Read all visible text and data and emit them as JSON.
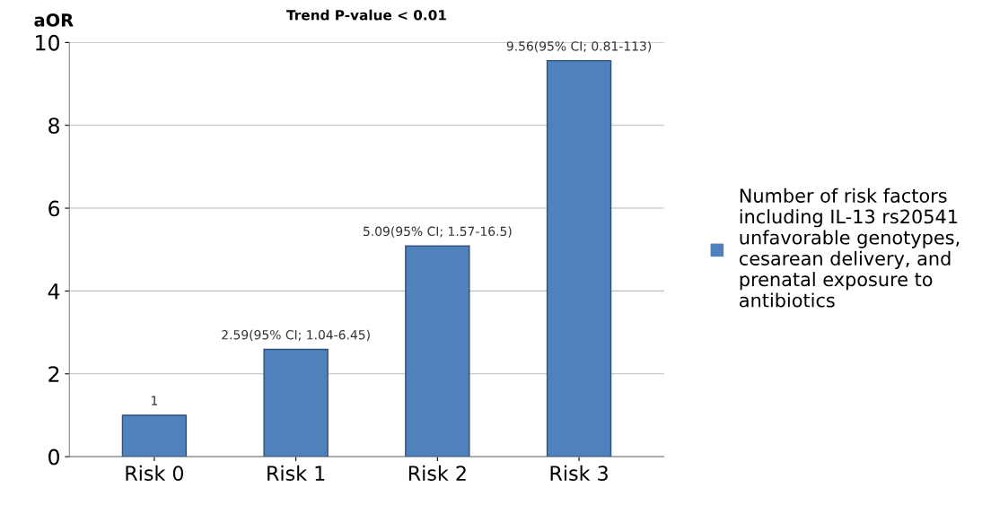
{
  "chart_data": {
    "type": "bar",
    "title": "Trend P-value < 0.01",
    "ylabel": "aOR",
    "categories": [
      "Risk 0",
      "Risk 1",
      "Risk 2",
      "Risk 3"
    ],
    "series": [
      {
        "name": "Number of risk factors\nincluding IL-13 rs20541\nunfavorable genotypes,\ncesarean delivery, and\nprenatal exposure to\nantibiotics",
        "color": "#4f81bd",
        "values": [
          1,
          2.59,
          5.09,
          9.56
        ],
        "value_labels": [
          "1",
          "2.59(95% CI; 1.04-6.45)",
          "5.09(95% CI; 1.57-16.5)",
          "9.56(95% CI; 0.81-113)"
        ]
      }
    ],
    "ylim": [
      0,
      10
    ],
    "yticks": [
      0,
      2,
      4,
      6,
      8,
      10
    ],
    "grid": "y",
    "legend": "right"
  }
}
